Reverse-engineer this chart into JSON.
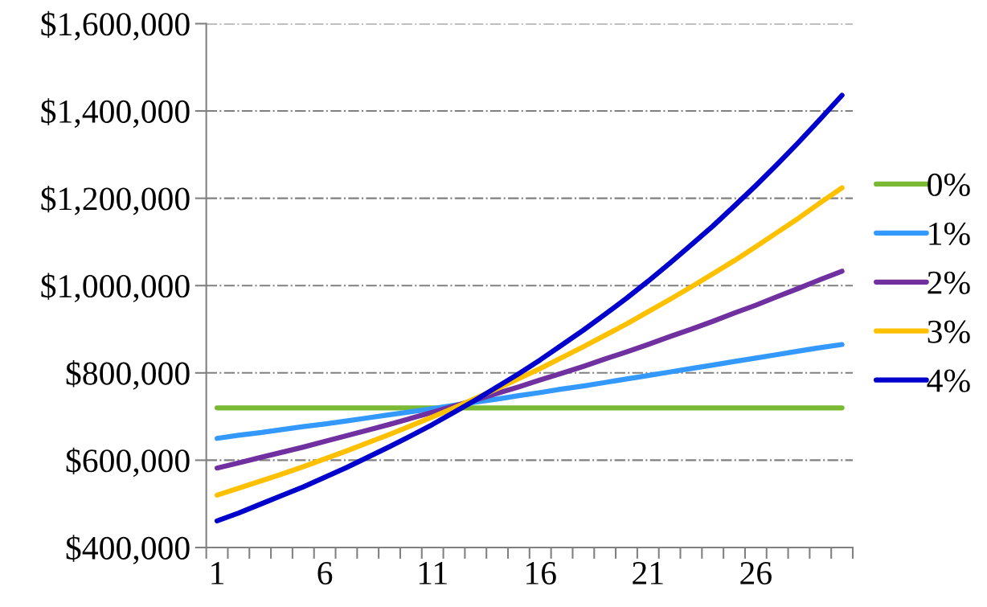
{
  "chart_data": {
    "type": "line",
    "categories": [
      "1",
      null,
      null,
      null,
      null,
      "6",
      null,
      null,
      null,
      null,
      "11",
      null,
      null,
      null,
      null,
      "16",
      null,
      null,
      null,
      null,
      "21",
      null,
      null,
      null,
      null,
      "26",
      null,
      null,
      null,
      null
    ],
    "series": [
      {
        "name": "0%",
        "color": "#7ab934",
        "values": [
          720000,
          720000,
          720000,
          720000,
          720000,
          720000,
          720000,
          720000,
          720000,
          720000,
          720000,
          720000,
          720000,
          720000,
          720000,
          720000,
          720000,
          720000,
          720000,
          720000,
          720000,
          720000,
          720000,
          720000,
          720000,
          720000,
          720000,
          720000,
          720000,
          720000
        ]
      },
      {
        "name": "1%",
        "color": "#3399ff",
        "values": [
          650000,
          657000,
          663000,
          670000,
          677000,
          683000,
          690000,
          697000,
          704000,
          711000,
          718000,
          726000,
          733000,
          740000,
          748000,
          755000,
          763000,
          770000,
          778000,
          786000,
          794000,
          802000,
          810000,
          818000,
          826000,
          834000,
          842000,
          850000,
          858000,
          865000
        ]
      },
      {
        "name": "2%",
        "color": "#7030a0",
        "values": [
          582000,
          594000,
          606000,
          618000,
          630000,
          643000,
          656000,
          669000,
          682000,
          696000,
          710000,
          724000,
          738000,
          753000,
          768000,
          784000,
          799000,
          815000,
          832000,
          848000,
          865000,
          883000,
          900000,
          918000,
          937000,
          955000,
          975000,
          994000,
          1014000,
          1033000
        ]
      },
      {
        "name": "3%",
        "color": "#ffc000",
        "values": [
          520000,
          536000,
          552000,
          568000,
          585000,
          603000,
          621000,
          640000,
          659000,
          679000,
          699000,
          720000,
          742000,
          764000,
          787000,
          810000,
          835000,
          860000,
          886000,
          912000,
          940000,
          968000,
          997000,
          1027000,
          1057000,
          1089000,
          1122000,
          1155000,
          1190000,
          1224000
        ]
      },
      {
        "name": "4%",
        "color": "#0000cc",
        "values": [
          461000,
          479000,
          499000,
          519000,
          539000,
          561000,
          583000,
          607000,
          631000,
          656000,
          682000,
          710000,
          738000,
          768000,
          798000,
          830000,
          864000,
          898000,
          934000,
          971000,
          1010000,
          1051000,
          1093000,
          1136000,
          1182000,
          1229000,
          1278000,
          1329000,
          1382000,
          1436000
        ]
      }
    ],
    "ylim": [
      400000,
      1600000
    ],
    "yticks": [
      {
        "value": 400000,
        "label": "$400,000"
      },
      {
        "value": 600000,
        "label": "$600,000"
      },
      {
        "value": 800000,
        "label": "$800,000"
      },
      {
        "value": 1000000,
        "label": "$1,000,000"
      },
      {
        "value": 1200000,
        "label": "$1,200,000"
      },
      {
        "value": 1400000,
        "label": "$1,400,000"
      },
      {
        "value": 1600000,
        "label": "$1,600,000"
      }
    ],
    "grid": "y",
    "legend": "right",
    "marker": "none",
    "line_style": "solid"
  }
}
